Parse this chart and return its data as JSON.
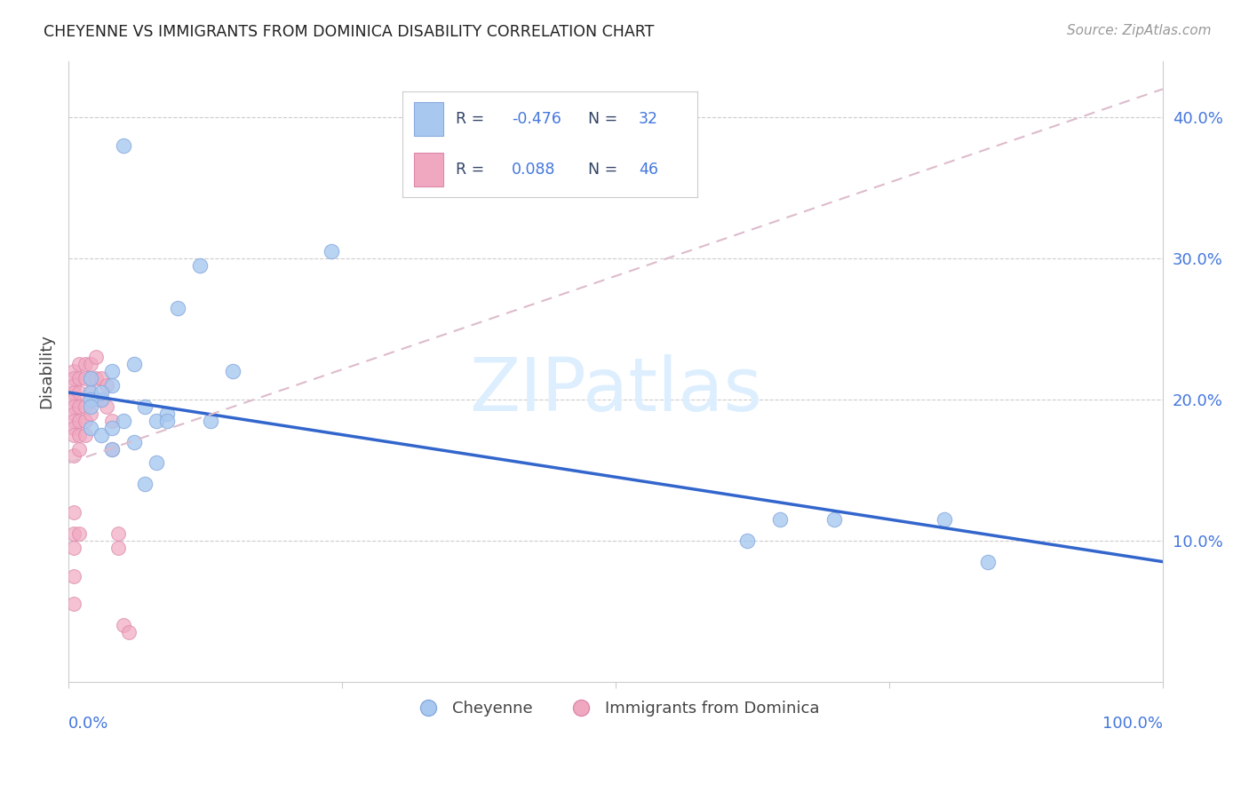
{
  "title": "CHEYENNE VS IMMIGRANTS FROM DOMINICA DISABILITY CORRELATION CHART",
  "source": "Source: ZipAtlas.com",
  "ylabel": "Disability",
  "xlim": [
    0,
    1.0
  ],
  "ylim": [
    0,
    0.44
  ],
  "ytick_vals": [
    0.1,
    0.2,
    0.3,
    0.4
  ],
  "ytick_labels": [
    "10.0%",
    "20.0%",
    "30.0%",
    "40.0%"
  ],
  "cheyenne_color": "#a8c8f0",
  "cheyenne_edge_color": "#88aadd",
  "dominica_color": "#f0a8c0",
  "dominica_edge_color": "#dd88aa",
  "cheyenne_line_color": "#3366cc",
  "dominica_line_color": "#dd8899",
  "dominica_trendline_color": "#ddbbcc",
  "legend_text_color": "#4477dd",
  "legend_label_color": "#334466",
  "watermark_color": "#ddeeff",
  "cheyenne_scatter_x": [
    0.05,
    0.12,
    0.24,
    0.02,
    0.02,
    0.03,
    0.04,
    0.04,
    0.06,
    0.07,
    0.08,
    0.09,
    0.13,
    0.15,
    0.02,
    0.03,
    0.04,
    0.06,
    0.08,
    0.62,
    0.65,
    0.7,
    0.8,
    0.84,
    0.02,
    0.03,
    0.05,
    0.09,
    0.02,
    0.04,
    0.07,
    0.1
  ],
  "cheyenne_scatter_y": [
    0.38,
    0.295,
    0.305,
    0.205,
    0.215,
    0.2,
    0.21,
    0.22,
    0.225,
    0.195,
    0.185,
    0.19,
    0.185,
    0.22,
    0.18,
    0.175,
    0.165,
    0.17,
    0.155,
    0.1,
    0.115,
    0.115,
    0.115,
    0.085,
    0.2,
    0.205,
    0.185,
    0.185,
    0.195,
    0.18,
    0.14,
    0.265
  ],
  "dominica_scatter_x": [
    0.005,
    0.005,
    0.005,
    0.005,
    0.005,
    0.005,
    0.005,
    0.005,
    0.005,
    0.005,
    0.005,
    0.005,
    0.005,
    0.005,
    0.005,
    0.005,
    0.01,
    0.01,
    0.01,
    0.01,
    0.01,
    0.01,
    0.01,
    0.01,
    0.015,
    0.015,
    0.015,
    0.015,
    0.015,
    0.02,
    0.02,
    0.02,
    0.02,
    0.025,
    0.025,
    0.025,
    0.03,
    0.03,
    0.035,
    0.035,
    0.04,
    0.04,
    0.045,
    0.045,
    0.05,
    0.055
  ],
  "dominica_scatter_y": [
    0.22,
    0.215,
    0.21,
    0.205,
    0.2,
    0.195,
    0.19,
    0.185,
    0.18,
    0.175,
    0.16,
    0.12,
    0.105,
    0.095,
    0.075,
    0.055,
    0.225,
    0.215,
    0.205,
    0.195,
    0.185,
    0.175,
    0.165,
    0.105,
    0.225,
    0.215,
    0.195,
    0.185,
    0.175,
    0.225,
    0.215,
    0.205,
    0.19,
    0.23,
    0.215,
    0.2,
    0.215,
    0.2,
    0.21,
    0.195,
    0.185,
    0.165,
    0.105,
    0.095,
    0.04,
    0.035
  ],
  "cheyenne_line_x0": 0.0,
  "cheyenne_line_y0": 0.205,
  "cheyenne_line_x1": 1.0,
  "cheyenne_line_y1": 0.085,
  "dominica_line_x0": 0.0,
  "dominica_line_y0": 0.155,
  "dominica_line_x1": 1.0,
  "dominica_line_y1": 0.42,
  "watermark": "ZIPatlas",
  "background_color": "#ffffff"
}
